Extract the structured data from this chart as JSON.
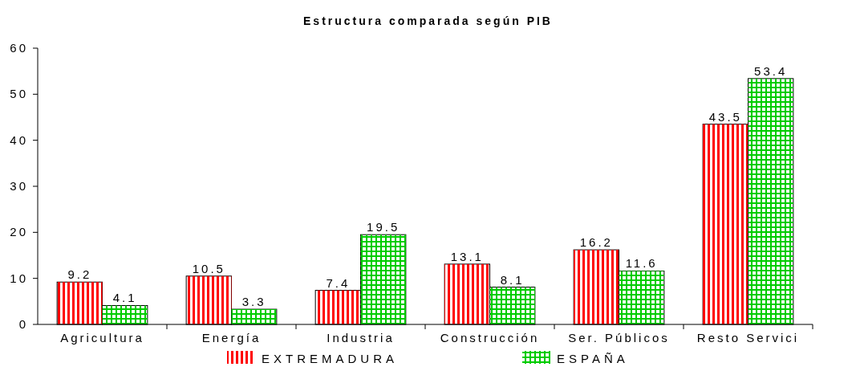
{
  "chart_data": {
    "type": "bar",
    "title": "Estructura comparada según PIB",
    "categories": [
      "Agricultura",
      "Energía",
      "Industria",
      "Construcción",
      "Ser. Públicos",
      "Resto Servici"
    ],
    "series": [
      {
        "name": "EXTREMADURA",
        "color": "#ff0000",
        "values": [
          9.2,
          10.5,
          7.4,
          13.1,
          16.2,
          43.5
        ]
      },
      {
        "name": "ESPAÑA",
        "color": "#00cc00",
        "values": [
          4.1,
          3.3,
          19.5,
          8.1,
          11.6,
          53.4
        ]
      }
    ],
    "ylim": [
      0,
      60
    ],
    "yticks": [
      0,
      10,
      20,
      30,
      40,
      50,
      60
    ],
    "data_labels": true,
    "legend": "bottom",
    "grid": false
  }
}
